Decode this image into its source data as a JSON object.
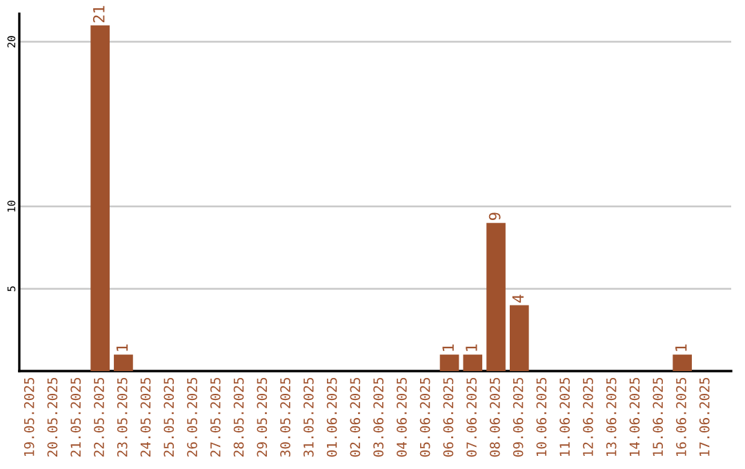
{
  "chart_data": {
    "type": "bar",
    "categories": [
      "19.05.2025",
      "20.05.2025",
      "21.05.2025",
      "22.05.2025",
      "23.05.2025",
      "24.05.2025",
      "25.05.2025",
      "26.05.2025",
      "27.05.2025",
      "28.05.2025",
      "29.05.2025",
      "30.05.2025",
      "31.05.2025",
      "01.06.2025",
      "02.06.2025",
      "03.06.2025",
      "04.06.2025",
      "05.06.2025",
      "06.06.2025",
      "07.06.2025",
      "08.06.2025",
      "09.06.2025",
      "10.06.2025",
      "11.06.2025",
      "12.06.2025",
      "13.06.2025",
      "14.06.2025",
      "15.06.2025",
      "16.06.2025",
      "17.06.2025"
    ],
    "values": [
      0,
      0,
      0,
      21,
      1,
      0,
      0,
      0,
      0,
      0,
      0,
      0,
      0,
      0,
      0,
      0,
      0,
      0,
      1,
      1,
      9,
      4,
      0,
      0,
      0,
      0,
      0,
      0,
      1,
      0
    ],
    "value_labels": [
      null,
      null,
      null,
      "21",
      "1",
      null,
      null,
      null,
      null,
      null,
      null,
      null,
      null,
      null,
      null,
      null,
      null,
      null,
      "1",
      "1",
      "9",
      "4",
      null,
      null,
      null,
      null,
      null,
      null,
      "1",
      null
    ],
    "color": "#a0522d",
    "ylim": [
      0,
      21.7
    ],
    "yticks": [
      5,
      10,
      20
    ],
    "grid": "y"
  }
}
